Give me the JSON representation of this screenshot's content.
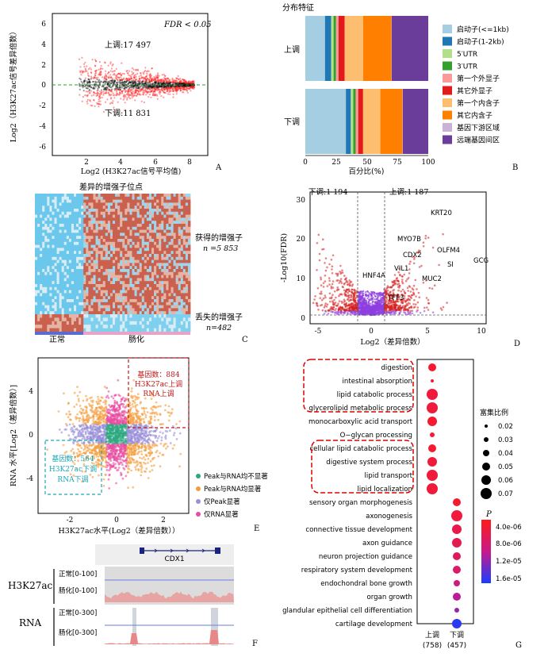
{
  "panelA": {
    "letter": "A",
    "fdr_label": "FDR < 0.05",
    "up_label": "上调:17 497",
    "down_label": "下调:11 831",
    "ylabel": "Log2（H3K27ac信号差异倍数）",
    "xlabel": "Log2 (H3K27ac信号平均值)",
    "xticks": [
      "2",
      "4",
      "6",
      "8"
    ],
    "yticks": [
      "6",
      "4",
      "2",
      "0",
      "-2",
      "-4",
      "-6"
    ],
    "colors": {
      "up": "#ff2020",
      "down": "#ff2020",
      "ns": "#111111",
      "ref": "#2ca02c"
    }
  },
  "panelB": {
    "letter": "B",
    "title": "分布特征",
    "rows": [
      "上调",
      "下调"
    ],
    "xlabel": "百分比(%)",
    "xticks": [
      "0",
      "25",
      "50",
      "75",
      "100"
    ],
    "categories": [
      "启动子(<=1kb)",
      "启动子(1-2kb)",
      "5′UTR",
      "3′UTR",
      "第一个外显子",
      "其它外显子",
      "第一个内含子",
      "其它内含子",
      "基因下游区域",
      "远端基因间区"
    ],
    "colors": [
      "#a6cee3",
      "#1f78b4",
      "#b2df8a",
      "#33a02c",
      "#fb9a99",
      "#e31a1c",
      "#fdbf6f",
      "#ff7f00",
      "#cab2d6",
      "#6a3d9a"
    ],
    "up_values": [
      16,
      5,
      2,
      2,
      2,
      5,
      15,
      23,
      0.3,
      29.7
    ],
    "down_values": [
      33,
      4,
      2,
      2,
      2,
      4,
      14,
      18,
      0.3,
      20.7
    ]
  },
  "panelC": {
    "letter": "C",
    "title": "差异的增强子位点",
    "gained_label": "获得的增强子",
    "gained_n": "n =5 853",
    "lost_label": "丢失的增强子",
    "lost_n": "n=482",
    "col_labels": [
      "正常",
      "肠化"
    ]
  },
  "panelD": {
    "letter": "D",
    "down_label": "下调:1 194",
    "up_label": "上调:1 187",
    "ylabel": "-Log10(FDR)",
    "xlabel": "Log2（差异倍数）",
    "xticks": [
      "-5",
      "0",
      "5",
      "10"
    ],
    "yticks": [
      "0",
      "10",
      "20",
      "30"
    ],
    "genes": [
      "KRT20",
      "MYO7B",
      "OLFM4",
      "CDX2",
      "GCG",
      "SI",
      "VIL1",
      "MUC2",
      "HNF4A",
      "TFF3"
    ]
  },
  "panelE": {
    "letter": "E",
    "ylabel": "RNA 水平[Log2（差异倍数）]",
    "xlabel": "H3K27ac水平(Log2（差异倍数））",
    "xticks": [
      "-2",
      "0",
      "2"
    ],
    "yticks": [
      "4",
      "0",
      "-4"
    ],
    "up_box": [
      "基因数：884",
      "H3K27ac上调",
      "RNA上调"
    ],
    "down_box": [
      "基因数：564",
      "H3K27ac下调",
      "RNA下调"
    ],
    "legend": [
      {
        "label": "Peak与RNA均不显著",
        "color": "#2ca87f"
      },
      {
        "label": "Peak与RNA均显著",
        "color": "#f39c3c"
      },
      {
        "label": "仅Peak显著",
        "color": "#9a8fd8"
      },
      {
        "label": "仅RNA显著",
        "color": "#e84ba0"
      }
    ]
  },
  "panelF": {
    "letter": "F",
    "gene": "CDX1",
    "track1": "H3K27ac",
    "track2": "RNA",
    "rows": [
      "正常[0-100]",
      "肠化[0-100]",
      "正常[0-300]",
      "肠化[0-300]"
    ]
  },
  "panelG": {
    "letter": "G",
    "terms": [
      "digestion",
      "intestinal absorption",
      "lipid catabolic process",
      "glycerolipid metabolic process",
      "monocarboxylic acid transport",
      "O−glycan processing",
      "cellular lipid catabolic process",
      "digestive system process",
      "lipid transport",
      "lipid localization",
      "sensory organ morphogenesis",
      "axonogenesis",
      "connective tissue development",
      "axon guidance",
      "neuron projection guidance",
      "respiratory system development",
      "endochondral bone growth",
      "organ growth",
      "glandular epithelial cell differentiation",
      "cartilage development"
    ],
    "columns": [
      "上调",
      "下调"
    ],
    "column_counts": [
      "(758)",
      "(457)"
    ],
    "size_title": "富集比例",
    "size_legend": [
      "0.02",
      "0.03",
      "0.04",
      "0.05",
      "0.06",
      "0.07"
    ],
    "p_title": "P",
    "p_legend": [
      "4.0e-06",
      "8.0e-06",
      "1.2e-05",
      "1.6e-05"
    ],
    "ratios": [
      0.05,
      0.02,
      0.07,
      0.07,
      0.06,
      0.03,
      0.05,
      0.06,
      0.07,
      0.07,
      0.05,
      0.07,
      0.06,
      0.06,
      0.05,
      0.05,
      0.04,
      0.05,
      0.03,
      0.06
    ],
    "color_values": [
      0.1,
      0.1,
      0.15,
      0.15,
      0.1,
      0.1,
      0.1,
      0.15,
      0.15,
      0.15,
      0.1,
      0.15,
      0.2,
      0.25,
      0.3,
      0.35,
      0.45,
      0.55,
      0.65,
      0.95
    ]
  }
}
